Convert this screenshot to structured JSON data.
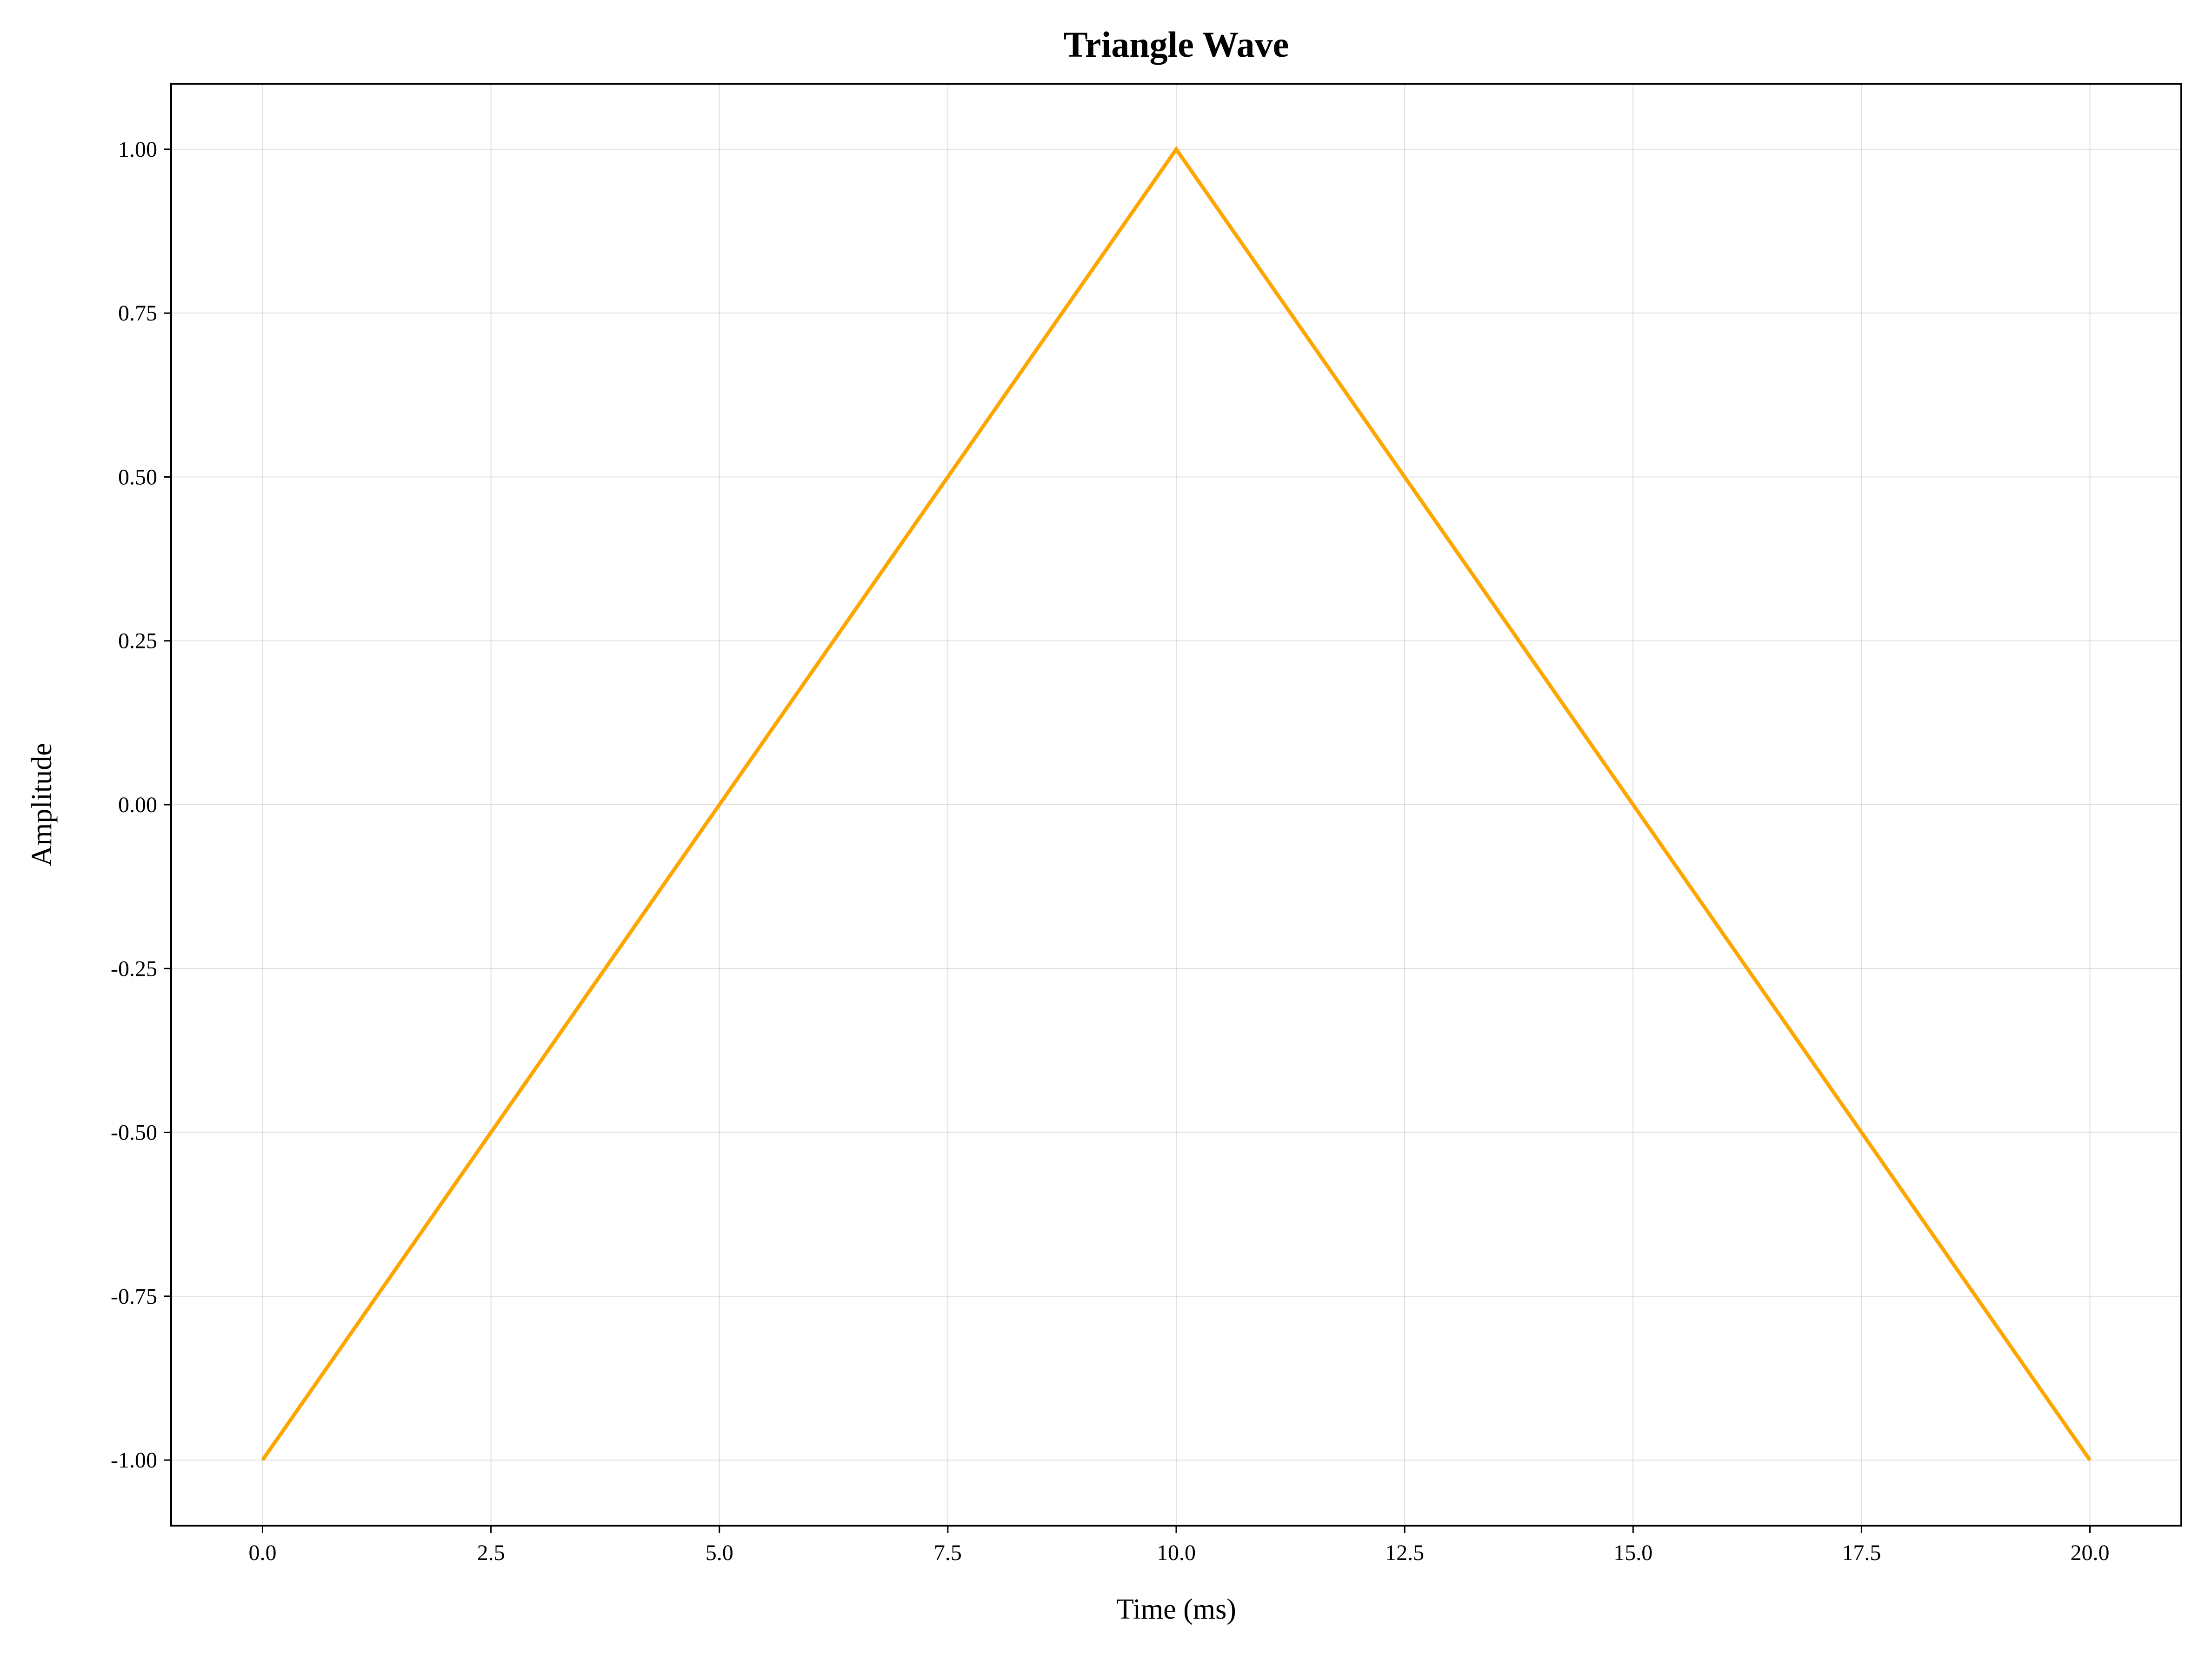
{
  "chart_data": {
    "type": "line",
    "title": "Triangle Wave",
    "xlabel": "Time (ms)",
    "ylabel": "Amplitude",
    "xlim": [
      -1.0,
      21.0
    ],
    "ylim": [
      -1.1,
      1.1
    ],
    "xticks": [
      0.0,
      2.5,
      5.0,
      7.5,
      10.0,
      12.5,
      15.0,
      17.5,
      20.0
    ],
    "xtick_labels": [
      "0.0",
      "2.5",
      "5.0",
      "7.5",
      "10.0",
      "12.5",
      "15.0",
      "17.5",
      "20.0"
    ],
    "yticks": [
      1.0,
      0.75,
      0.5,
      0.25,
      0.0,
      -0.25,
      -0.5,
      -0.75,
      -1.0
    ],
    "ytick_labels": [
      "1.00",
      "0.75",
      "0.50",
      "0.25",
      "0.00",
      "-0.25",
      "-0.50",
      "-0.75",
      "-1.00"
    ],
    "grid": true,
    "legend": "none",
    "series": [
      {
        "color": "#FFA500",
        "x": [
          0.0,
          10.0,
          20.0
        ],
        "y": [
          -1.0,
          1.0,
          -1.0
        ]
      }
    ]
  }
}
